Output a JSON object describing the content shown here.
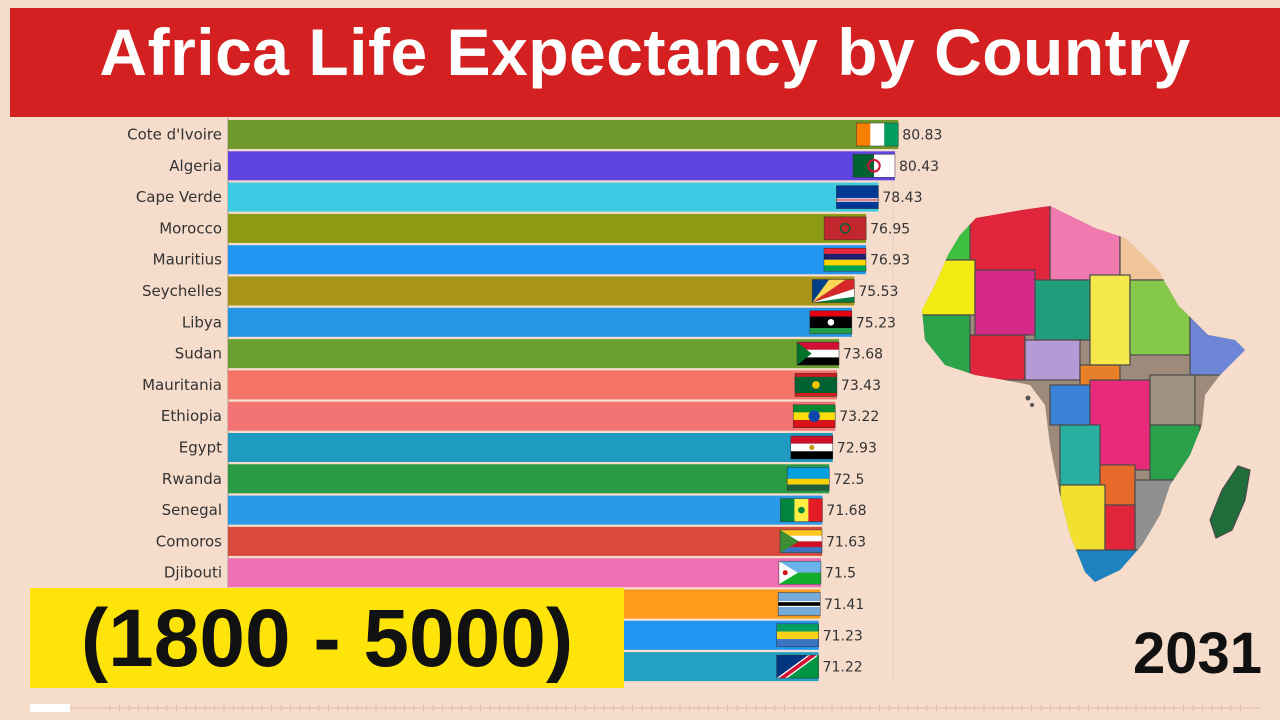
{
  "header": {
    "title": "Africa Life Expectancy by Country"
  },
  "range_label": "(1800 - 5000)",
  "year_label": "2031",
  "chart_data": {
    "type": "bar",
    "orientation": "horizontal",
    "title": "Africa Life Expectancy by Country",
    "xlabel": "",
    "ylabel": "",
    "xlim": [
      0,
      82
    ],
    "grid": false,
    "legend": "none",
    "categories": [
      "Cote d'Ivoire",
      "Algeria",
      "Cape Verde",
      "Morocco",
      "Mauritius",
      "Seychelles",
      "Libya",
      "Sudan",
      "Mauritania",
      "Ethiopia",
      "Egypt",
      "Rwanda",
      "Senegal",
      "Comoros",
      "Djibouti",
      "",
      "",
      ""
    ],
    "values": [
      80.83,
      80.43,
      78.43,
      76.95,
      76.93,
      75.53,
      75.23,
      73.68,
      73.43,
      73.22,
      72.93,
      72.5,
      71.68,
      71.63,
      71.5,
      71.41,
      71.23,
      71.22
    ],
    "value_labels": [
      "80.83",
      "80.43",
      "78.43",
      "76.95",
      "76.93",
      "75.53",
      "75.23",
      "73.68",
      "73.43",
      "73.22",
      "72.93",
      "72.5",
      "71.68",
      "71.63",
      "71.5",
      "71.41",
      "71.23",
      "71.22"
    ],
    "colors": [
      "#6f9a2b",
      "#6044e0",
      "#3ccbe2",
      "#8c9a14",
      "#2196f3",
      "#a79418",
      "#2595e6",
      "#699f2f",
      "#f47468",
      "#f47474",
      "#1f9bc1",
      "#2a9a44",
      "#289ae6",
      "#d94a3a",
      "#f070b4",
      "#ff9a1a",
      "#2195f0",
      "#23a1c4"
    ],
    "flags": [
      "flag-cote-divoire",
      "flag-algeria",
      "flag-cape-verde",
      "flag-morocco",
      "flag-mauritius",
      "flag-seychelles",
      "flag-libya",
      "flag-sudan",
      "flag-mauritania",
      "flag-ethiopia",
      "flag-egypt",
      "flag-rwanda",
      "flag-senegal",
      "flag-comoros",
      "flag-djibouti",
      "flag-botswana",
      "flag-gabon",
      "flag-namibia"
    ]
  }
}
